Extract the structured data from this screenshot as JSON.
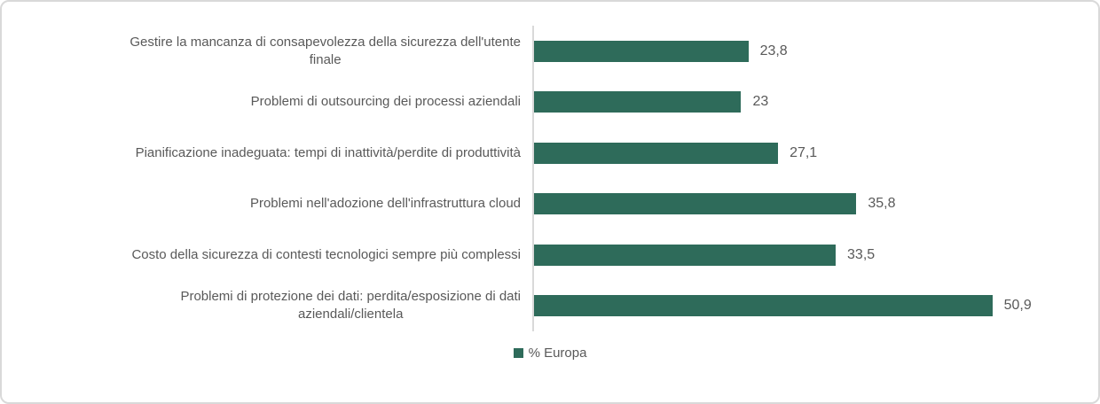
{
  "chart_data": {
    "type": "bar",
    "orientation": "horizontal",
    "title": "",
    "xlabel": "",
    "ylabel": "",
    "xlim": [
      0,
      60
    ],
    "grid": false,
    "legend_position": "bottom",
    "bar_color": "#2e6b5a",
    "axis_line_color": "#d9d9d9",
    "text_color": "#595959",
    "categories": [
      "Gestire la mancanza di consapevolezza della sicurezza dell'utente\nfinale",
      "Problemi di outsourcing dei processi aziendali",
      "Pianificazione inadeguata: tempi di inattività/perdite di produttività",
      "Problemi nell'adozione dell'infrastruttura cloud",
      "Costo della sicurezza di contesti tecnologici sempre più complessi",
      "Problemi di protezione dei dati: perdita/esposizione di dati\naziendali/clientela"
    ],
    "series": [
      {
        "name": "% Europa",
        "values": [
          23.8,
          23,
          27.1,
          35.8,
          33.5,
          50.9
        ]
      }
    ],
    "value_labels": [
      "23,8",
      "23",
      "27,1",
      "35,8",
      "33,5",
      "50,9"
    ]
  },
  "legend": {
    "label": "% Europa"
  }
}
